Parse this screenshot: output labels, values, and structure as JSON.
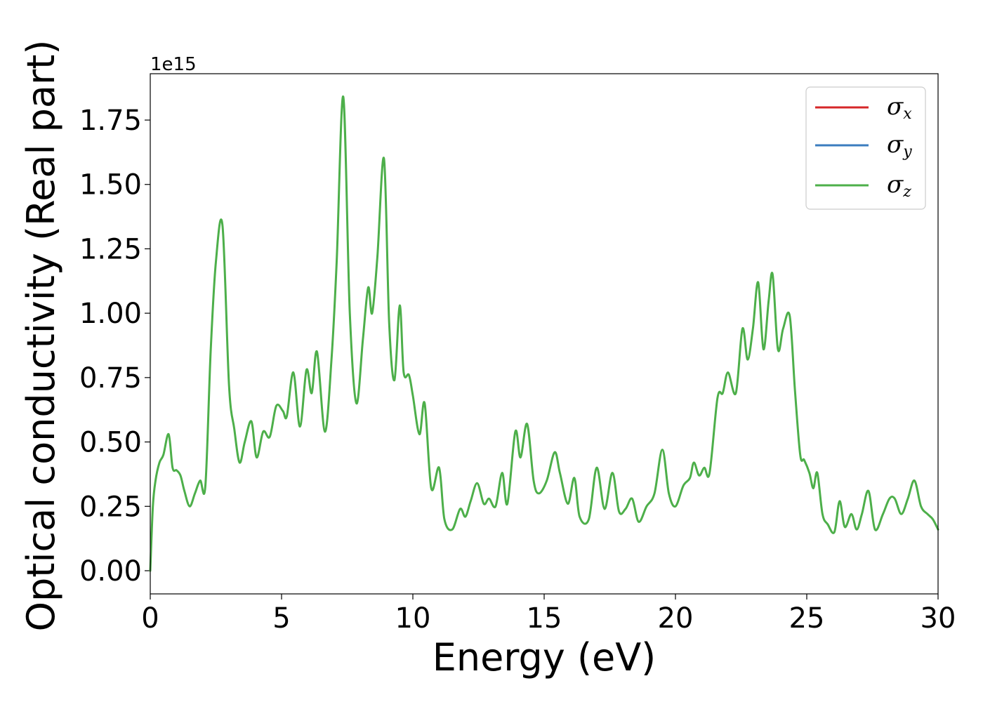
{
  "chart_data": {
    "type": "line",
    "xlabel": "Energy (eV)",
    "ylabel": "Optical conductivity (Real part)",
    "y_offset_label": "1e15",
    "xlim": [
      0,
      30
    ],
    "ylim": [
      -0.09,
      1.93
    ],
    "y_scale_factor": 1000000000000000.0,
    "xticks": [
      0,
      5,
      10,
      15,
      20,
      25,
      30
    ],
    "xtick_labels": [
      "0",
      "5",
      "10",
      "15",
      "20",
      "25",
      "30"
    ],
    "yticks": [
      0.0,
      0.25,
      0.5,
      0.75,
      1.0,
      1.25,
      1.5,
      1.75
    ],
    "ytick_labels": [
      "0.00",
      "0.25",
      "0.50",
      "0.75",
      "1.00",
      "1.25",
      "1.50",
      "1.75"
    ],
    "grid": false,
    "legend_position": "top-right",
    "legend": [
      {
        "symbol": "σ",
        "sub": "x",
        "color": "#d62728"
      },
      {
        "symbol": "σ",
        "sub": "y",
        "color": "#3b7dbf"
      },
      {
        "symbol": "σ",
        "sub": "z",
        "color": "#4daf4a"
      }
    ],
    "x": [
      0.0,
      0.1,
      0.2,
      0.35,
      0.5,
      0.7,
      0.85,
      1.0,
      1.15,
      1.3,
      1.5,
      1.7,
      1.9,
      2.1,
      2.3,
      2.5,
      2.75,
      3.0,
      3.2,
      3.4,
      3.6,
      3.85,
      4.05,
      4.3,
      4.55,
      4.8,
      5.05,
      5.2,
      5.45,
      5.7,
      5.95,
      6.15,
      6.35,
      6.65,
      6.9,
      7.1,
      7.35,
      7.6,
      7.85,
      8.1,
      8.3,
      8.45,
      8.65,
      8.9,
      9.1,
      9.3,
      9.5,
      9.65,
      9.85,
      10.0,
      10.25,
      10.45,
      10.7,
      11.0,
      11.2,
      11.5,
      11.8,
      12.0,
      12.2,
      12.45,
      12.7,
      12.9,
      13.15,
      13.4,
      13.6,
      13.9,
      14.1,
      14.35,
      14.6,
      14.8,
      15.1,
      15.4,
      15.6,
      15.9,
      16.15,
      16.35,
      16.7,
      17.0,
      17.3,
      17.6,
      17.85,
      18.1,
      18.35,
      18.6,
      18.9,
      19.2,
      19.5,
      19.75,
      20.0,
      20.3,
      20.55,
      20.7,
      20.9,
      21.1,
      21.3,
      21.6,
      21.8,
      22.0,
      22.3,
      22.55,
      22.75,
      22.95,
      23.15,
      23.35,
      23.55,
      23.7,
      23.9,
      24.1,
      24.35,
      24.55,
      24.75,
      24.9,
      25.1,
      25.25,
      25.4,
      25.6,
      25.8,
      26.05,
      26.25,
      26.45,
      26.7,
      26.9,
      27.1,
      27.35,
      27.6,
      27.9,
      28.15,
      28.35,
      28.6,
      28.85,
      29.1,
      29.35,
      29.6,
      29.8,
      30.0
    ],
    "series": [
      {
        "name": "",
        "color": "#4daf4a",
        "values": [
          0.0,
          0.25,
          0.35,
          0.42,
          0.45,
          0.53,
          0.4,
          0.39,
          0.37,
          0.31,
          0.25,
          0.3,
          0.35,
          0.33,
          0.85,
          1.2,
          1.34,
          0.72,
          0.55,
          0.42,
          0.5,
          0.58,
          0.44,
          0.54,
          0.52,
          0.64,
          0.62,
          0.6,
          0.77,
          0.56,
          0.78,
          0.69,
          0.85,
          0.54,
          0.82,
          1.2,
          1.84,
          1.0,
          0.65,
          0.9,
          1.1,
          1.0,
          1.22,
          1.6,
          0.96,
          0.74,
          1.03,
          0.77,
          0.76,
          0.68,
          0.53,
          0.65,
          0.32,
          0.4,
          0.2,
          0.16,
          0.24,
          0.21,
          0.27,
          0.34,
          0.26,
          0.28,
          0.25,
          0.38,
          0.26,
          0.54,
          0.44,
          0.57,
          0.35,
          0.3,
          0.35,
          0.46,
          0.38,
          0.26,
          0.36,
          0.21,
          0.2,
          0.4,
          0.24,
          0.38,
          0.23,
          0.24,
          0.28,
          0.19,
          0.25,
          0.3,
          0.47,
          0.3,
          0.25,
          0.33,
          0.36,
          0.42,
          0.37,
          0.4,
          0.38,
          0.67,
          0.69,
          0.77,
          0.69,
          0.94,
          0.82,
          0.94,
          1.12,
          0.86,
          1.05,
          1.15,
          0.86,
          0.94,
          0.99,
          0.7,
          0.45,
          0.43,
          0.38,
          0.32,
          0.38,
          0.22,
          0.18,
          0.15,
          0.27,
          0.17,
          0.22,
          0.16,
          0.22,
          0.31,
          0.16,
          0.22,
          0.28,
          0.28,
          0.22,
          0.28,
          0.35,
          0.25,
          0.22,
          0.2,
          0.16
        ]
      }
    ]
  }
}
